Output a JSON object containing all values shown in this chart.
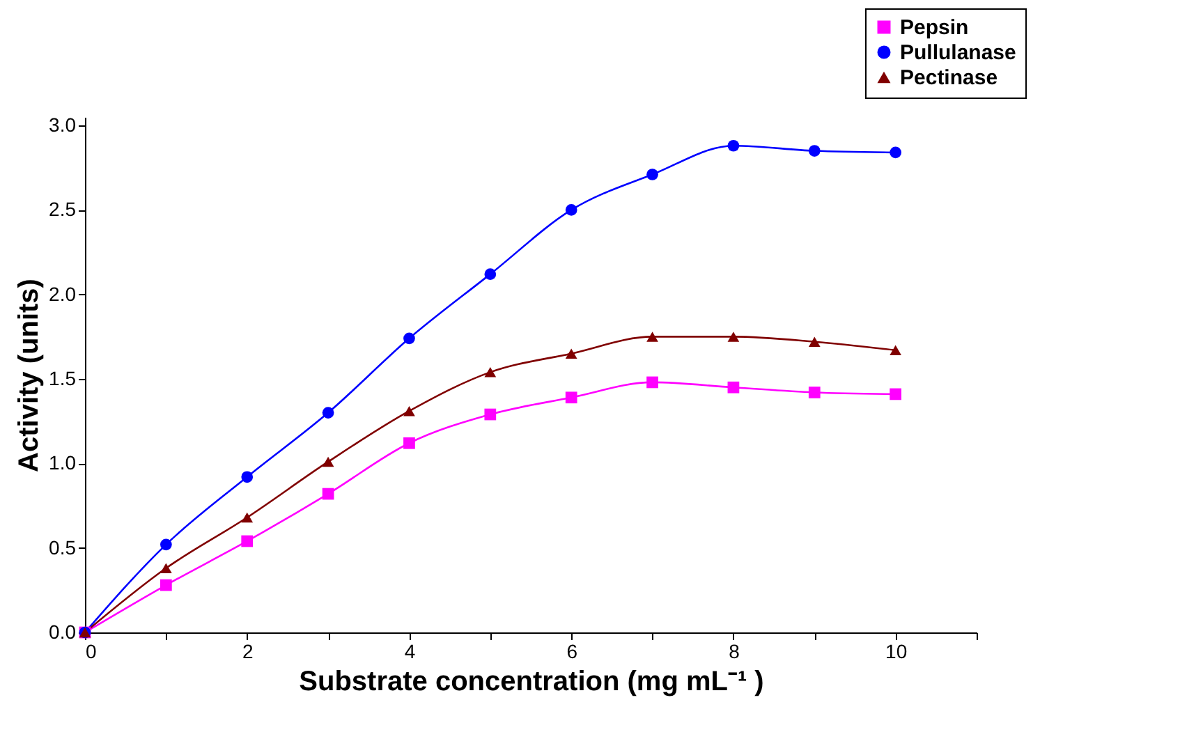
{
  "chart_data": {
    "type": "line",
    "xlabel": "Substrate concentration (mg mL⁻¹ )",
    "ylabel": "Activity (units)",
    "x": [
      0,
      1,
      2,
      3,
      4,
      5,
      6,
      7,
      8,
      9,
      10
    ],
    "series": [
      {
        "name": "Pepsin",
        "color": "#ff00ff",
        "marker": "square",
        "values": [
          0,
          0.28,
          0.54,
          0.82,
          1.12,
          1.29,
          1.39,
          1.48,
          1.45,
          1.42,
          1.41
        ]
      },
      {
        "name": "Pullulanase",
        "color": "#0000ff",
        "marker": "circle",
        "values": [
          0,
          0.52,
          0.92,
          1.3,
          1.74,
          2.12,
          2.5,
          2.71,
          2.88,
          2.85,
          2.84
        ]
      },
      {
        "name": "Pectinase",
        "color": "#800000",
        "marker": "triangle",
        "values": [
          0,
          0.38,
          0.68,
          1.01,
          1.31,
          1.54,
          1.65,
          1.75,
          1.75,
          1.72,
          1.67
        ]
      }
    ],
    "xlim": [
      0,
      11
    ],
    "xticks": [
      0,
      {
        "value": 1,
        "label": null
      },
      2,
      {
        "value": 3,
        "label": null
      },
      4,
      {
        "value": 5,
        "label": null
      },
      6,
      {
        "value": 7,
        "label": null
      },
      8,
      {
        "value": 9,
        "label": null
      },
      10,
      {
        "value": 11,
        "label": null
      }
    ],
    "ylim": [
      0,
      3.05
    ],
    "yticks": [
      {
        "value": 0,
        "label": "0.0"
      },
      {
        "value": 0.5,
        "label": "0.5"
      },
      {
        "value": 1,
        "label": "1.0"
      },
      {
        "value": 1.5,
        "label": "1.5"
      },
      {
        "value": 2,
        "label": "2.0"
      },
      {
        "value": 2.5,
        "label": "2.5"
      },
      {
        "value": 3,
        "label": "3.0"
      }
    ],
    "grid": false,
    "legend": "top right"
  }
}
